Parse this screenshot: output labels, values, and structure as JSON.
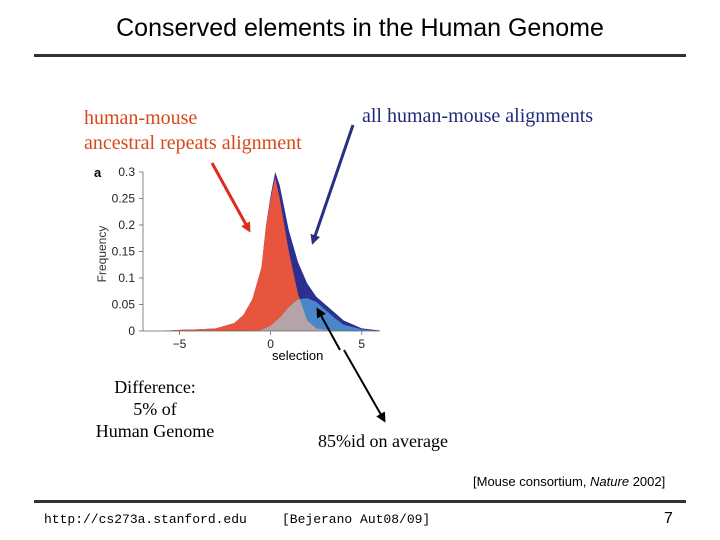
{
  "slide": {
    "title": "Conserved elements in the Human Genome",
    "label_repeats_line1": "human-mouse",
    "label_repeats_line2": "ancestral repeats alignment",
    "label_all": "all human-mouse alignments",
    "selection_label": "selection",
    "difference_line1": "Difference:",
    "difference_line2": "5% of",
    "difference_line3": "Human Genome",
    "identity_note": "85%id on average",
    "citation_prefix": "[Mouse consortium, ",
    "citation_journal": "Nature",
    "citation_suffix": " 2002]",
    "footer_url": "http://cs273a.stanford.edu",
    "footer_course": "[Bejerano Aut08/09]",
    "page_number": "7"
  },
  "colors": {
    "repeats": "#e8553e",
    "all_alignments": "#2b2f8f",
    "selection_fill": "#4a86c8",
    "overlap": "#b4a4a8",
    "label_orange": "#d9481a",
    "arrow_red": "#e02b1f",
    "arrow_navy": "#2a2f7e"
  },
  "chart_data": {
    "type": "area",
    "panel_label": "a",
    "ylabel": "Frequency",
    "x_ticks": [
      "−5",
      "0",
      "5"
    ],
    "y_ticks": [
      "0",
      "0.05",
      "0.1",
      "0.15",
      "0.2",
      "0.25",
      "0.3"
    ],
    "xlim": [
      -7,
      6
    ],
    "ylim": [
      0,
      0.3
    ],
    "series": [
      {
        "x": [
          -7,
          -6,
          -5,
          -4,
          -3,
          -2,
          -1.5,
          -1,
          -0.5,
          -0.25,
          0,
          0.25,
          0.5,
          1,
          1.5,
          2,
          2.5,
          3,
          3.5,
          4,
          5,
          6
        ],
        "y": [
          0,
          0,
          0.002,
          0.003,
          0.005,
          0.015,
          0.03,
          0.06,
          0.12,
          0.2,
          0.255,
          0.3,
          0.275,
          0.19,
          0.13,
          0.09,
          0.065,
          0.05,
          0.035,
          0.02,
          0.005,
          0.001
        ]
      },
      {
        "x": [
          -7,
          -6,
          -5,
          -4,
          -3,
          -2,
          -1.5,
          -1,
          -0.5,
          -0.25,
          0,
          0.25,
          0.5,
          1,
          1.5,
          2,
          2.5,
          3,
          4,
          5,
          6
        ],
        "y": [
          0,
          0,
          0.002,
          0.003,
          0.005,
          0.015,
          0.03,
          0.06,
          0.12,
          0.2,
          0.25,
          0.29,
          0.25,
          0.15,
          0.07,
          0.02,
          0.005,
          0.002,
          0,
          0,
          0
        ]
      },
      {
        "x": [
          -7,
          -1,
          -0.5,
          0,
          0.5,
          1,
          1.5,
          2,
          2.5,
          3,
          3.5,
          4,
          5,
          6
        ],
        "y": [
          0,
          0,
          0.002,
          0.01,
          0.025,
          0.045,
          0.06,
          0.062,
          0.055,
          0.04,
          0.025,
          0.012,
          0.003,
          0
        ]
      }
    ]
  }
}
